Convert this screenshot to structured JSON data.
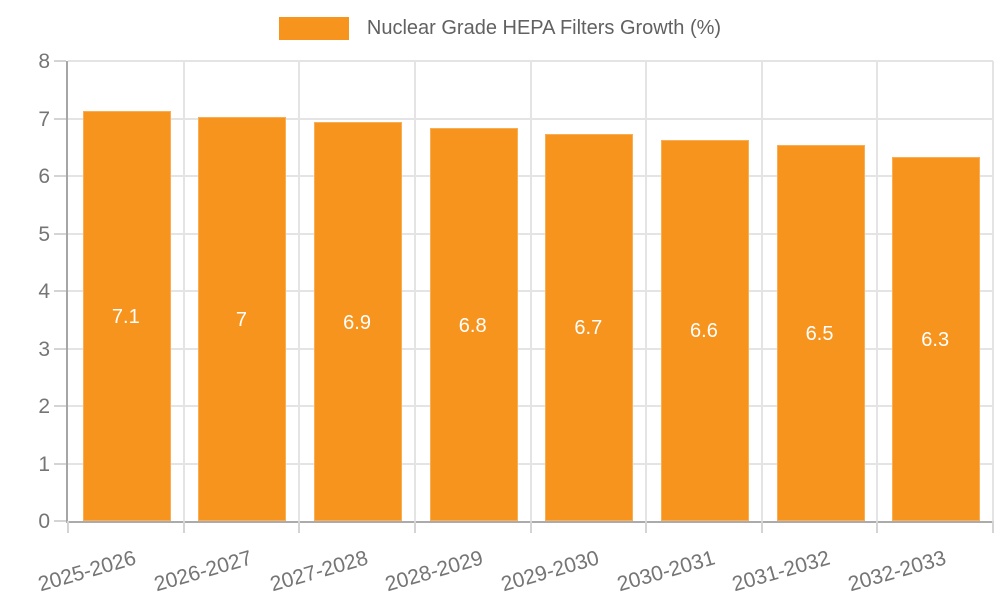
{
  "chart_data": {
    "type": "bar",
    "title": "",
    "legend": "Nuclear Grade HEPA Filters Growth (%)",
    "legend_position": "top-center",
    "categories": [
      "2025-2026",
      "2026-2027",
      "2027-2028",
      "2028-2029",
      "2029-2030",
      "2030-2031",
      "2031-2032",
      "2032-2033"
    ],
    "values": [
      7.1,
      7,
      6.9,
      6.8,
      6.7,
      6.6,
      6.5,
      6.3
    ],
    "value_labels": [
      "7.1",
      "7",
      "6.9",
      "6.8",
      "6.7",
      "6.6",
      "6.5",
      "6.3"
    ],
    "xlabel": "",
    "ylabel": "",
    "ylim": [
      0,
      8
    ],
    "yticks": [
      0,
      1,
      2,
      3,
      4,
      5,
      6,
      7,
      8
    ],
    "grid": true,
    "colors": {
      "bar": "#F7941E",
      "bar_border": "#F9AE55",
      "value_label": "#FFFFFF",
      "axis_line": "#A6A6A6",
      "gridline": "#E4E4E4",
      "tick_label": "#757575",
      "legend_text": "#616161",
      "background": "#FFFFFF"
    }
  }
}
